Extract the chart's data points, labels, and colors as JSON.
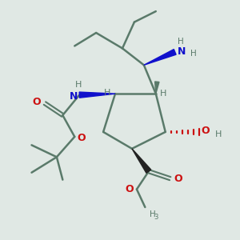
{
  "background_color": "#e0e8e4",
  "bond_color": "#5a7a6a",
  "bond_width": 1.8,
  "blue": "#1010cc",
  "dark": "#222222",
  "red": "#cc1010",
  "tgray": "#5a7a6a",
  "tblue": "#1010cc",
  "tred": "#cc1010",
  "figsize": [
    3.0,
    3.0
  ],
  "dpi": 100,
  "xlim": [
    0,
    10
  ],
  "ylim": [
    0,
    10
  ]
}
